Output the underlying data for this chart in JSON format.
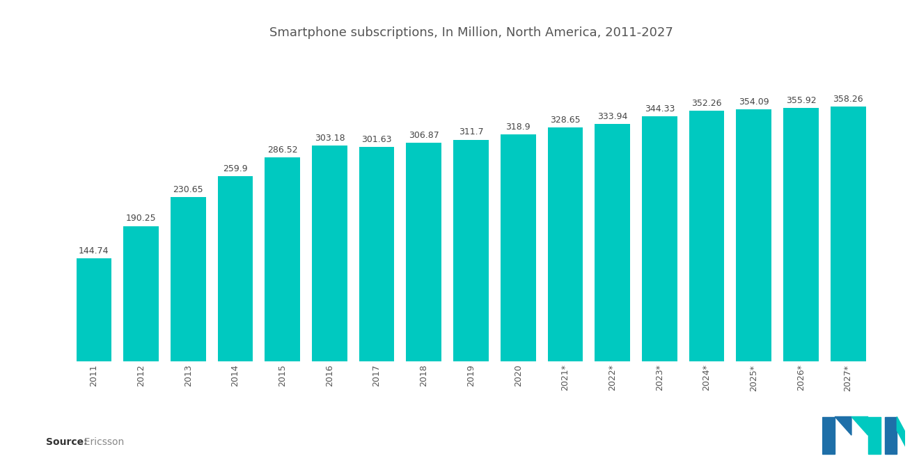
{
  "title": "Smartphone subscriptions, In Million, North America, 2011-2027",
  "categories": [
    "2011",
    "2012",
    "2013",
    "2014",
    "2015",
    "2016",
    "2017",
    "2018",
    "2019",
    "2020",
    "2021*",
    "2022*",
    "2023*",
    "2024*",
    "2025*",
    "2026*",
    "2027*"
  ],
  "values": [
    144.74,
    190.25,
    230.65,
    259.9,
    286.52,
    303.18,
    301.63,
    306.87,
    311.7,
    318.9,
    328.65,
    333.94,
    344.33,
    352.26,
    354.09,
    355.92,
    358.26
  ],
  "bar_color": "#00C9C0",
  "background_color": "#FFFFFF",
  "source_bold": "Source:",
  "source_normal": "  Ericsson",
  "title_fontsize": 13,
  "label_fontsize": 9,
  "tick_fontsize": 9,
  "source_fontsize": 10,
  "ylim": [
    0,
    430
  ],
  "logo_blue": "#1E6FA8",
  "logo_teal": "#00C9C0"
}
